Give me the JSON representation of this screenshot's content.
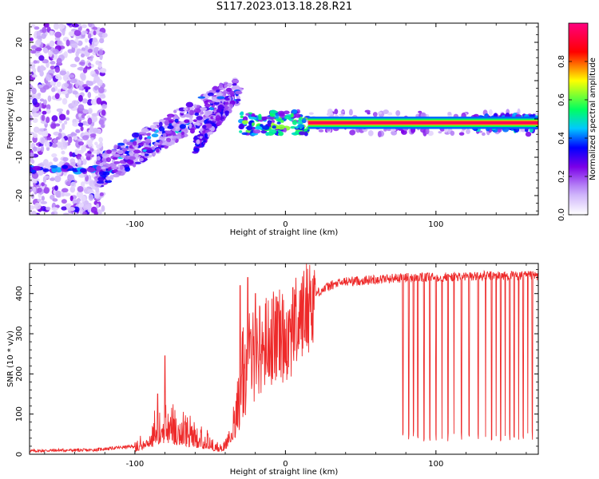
{
  "figure": {
    "title": "S117.2023.013.18.28.R21"
  },
  "chart_data": [
    {
      "type": "heatmap",
      "title": "S117.2023.013.18.28.R21",
      "xlabel": "Height of straight line (km)",
      "ylabel": "Frequency (Hz)",
      "xlim": [
        -170,
        168
      ],
      "ylim": [
        -25,
        25
      ],
      "x_ticks": [
        -100,
        0,
        100
      ],
      "x_tick_labels": [
        "-100",
        "0",
        "100"
      ],
      "y_ticks": [
        -20,
        -10,
        0,
        10,
        20
      ],
      "y_tick_labels": [
        "-20",
        "-10",
        "0",
        "10",
        "20"
      ],
      "grid": false,
      "colorbar": {
        "label": "Normalized spectral amplitude",
        "range": [
          0,
          1
        ],
        "ticks": [
          0.0,
          0.2,
          0.4,
          0.6,
          0.8
        ],
        "tick_labels": [
          "0.0",
          "0.2",
          "0.4",
          "0.6",
          "0.8"
        ],
        "colors": [
          "#ffffff",
          "#7b00e8",
          "#0000ff",
          "#00c8ff",
          "#00ff60",
          "#ffff00",
          "#ff0000",
          "#ff0080"
        ]
      },
      "features": [
        {
          "x_range": [
            -170,
            -120
          ],
          "freq_range": [
            -25,
            25
          ],
          "amplitude": 0.15
        },
        {
          "x_range": [
            -120,
            -30
          ],
          "freq_start": -12,
          "freq_end": 8,
          "amplitude": 0.3
        },
        {
          "x_range": [
            -25,
            15
          ],
          "freq_center": -1,
          "amplitude": 0.6
        },
        {
          "x_range": [
            15,
            165
          ],
          "freq_center": -1,
          "amplitude": 0.95
        },
        {
          "x_range": [
            125,
            165
          ],
          "freq_center": -1,
          "amplitude": 0.3
        }
      ]
    },
    {
      "type": "line",
      "xlabel": "Height of straight line (km)",
      "ylabel": "SNR (10 * v/v)",
      "xlim": [
        -170,
        168
      ],
      "ylim": [
        0,
        475
      ],
      "x_ticks": [
        -100,
        0,
        100
      ],
      "x_tick_labels": [
        "-100",
        "0",
        "100"
      ],
      "y_ticks": [
        0,
        100,
        200,
        300,
        400
      ],
      "y_tick_labels": [
        "0",
        "100",
        "200",
        "300",
        "400"
      ],
      "grid": false,
      "color": "#ee2a2a",
      "x": [
        -170,
        -150,
        -130,
        -115,
        -100,
        -90,
        -80,
        -70,
        -60,
        -50,
        -45,
        -40,
        -35,
        -30,
        -25,
        -20,
        -15,
        -10,
        -5,
        0,
        5,
        10,
        15,
        20,
        30,
        40,
        50,
        60,
        70,
        80,
        90,
        100,
        110,
        120,
        130,
        140,
        150,
        160,
        168
      ],
      "y": [
        8,
        10,
        10,
        15,
        20,
        55,
        90,
        70,
        55,
        35,
        20,
        30,
        90,
        180,
        230,
        250,
        270,
        290,
        290,
        300,
        310,
        340,
        370,
        400,
        420,
        430,
        432,
        435,
        438,
        440,
        440,
        440,
        442,
        442,
        444,
        444,
        444,
        444,
        444
      ],
      "spikes_up": [
        [
          -85,
          150
        ],
        [
          -80,
          245
        ],
        [
          -30,
          420
        ],
        [
          -25,
          440
        ],
        [
          -20,
          400
        ],
        [
          -5,
          380
        ],
        [
          5,
          415
        ]
      ],
      "dropouts": [
        78,
        82,
        85,
        88,
        92,
        96,
        100,
        104,
        108,
        112,
        117,
        122,
        128,
        133,
        137,
        140,
        143,
        146,
        149,
        152,
        155,
        158,
        161,
        164
      ]
    }
  ]
}
